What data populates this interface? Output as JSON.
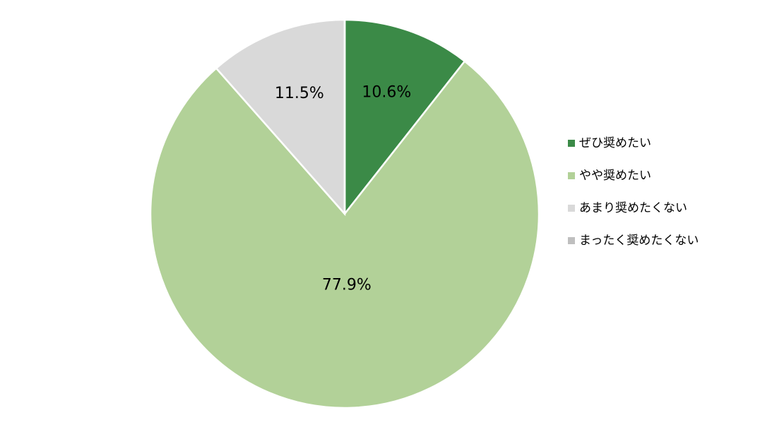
{
  "chart_data": {
    "type": "pie",
    "categories": [
      "ぜひ奨めたい",
      "やや奨めたい",
      "あまり奨めたくない",
      "まったく奨めたくない"
    ],
    "values": [
      10.6,
      77.9,
      11.5,
      0
    ],
    "value_labels": [
      "10.6%",
      "77.9%",
      "11.5%",
      null
    ],
    "colors": [
      "#3b8a47",
      "#b2d198",
      "#d9d9d9",
      "#bfbfbf"
    ],
    "legend": "right"
  }
}
